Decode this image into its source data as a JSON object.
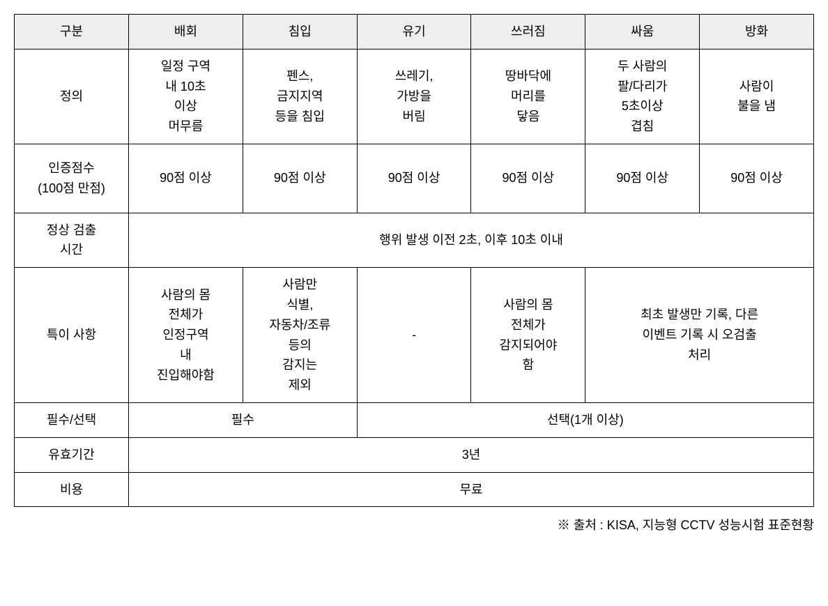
{
  "table": {
    "headers": [
      "구분",
      "배회",
      "침입",
      "유기",
      "쓰러짐",
      "싸움",
      "방화"
    ],
    "rows": {
      "definition": {
        "label": "정의",
        "cells": [
          "일정 구역\n내 10초\n이상\n머무름",
          "펜스,\n금지지역\n등을 침입",
          "쓰레기,\n가방을\n버림",
          "땅바닥에\n머리를\n닿음",
          "두 사람의\n팔/다리가\n5초이상\n겹침",
          "사람이\n불을 냄"
        ]
      },
      "score": {
        "label": "인증점수\n(100점 만점)",
        "cells": [
          "90점 이상",
          "90점 이상",
          "90점 이상",
          "90점 이상",
          "90점 이상",
          "90점 이상"
        ]
      },
      "detection_time": {
        "label": "정상 검출\n시간",
        "merged_value": "행위 발생 이전 2초, 이후 10초 이내"
      },
      "special_notes": {
        "label": "특이 사항",
        "cells": [
          "사람의 몸\n전체가\n인정구역\n내\n진입해야함",
          "사람만\n식별,\n자동차/조류\n등의\n감지는\n제외",
          "-",
          "사람의 몸\n전체가\n감지되어야\n함",
          "최초 발생만 기록, 다른\n이벤트 기록 시 오검출\n처리"
        ]
      },
      "mandatory": {
        "label": "필수/선택",
        "cells": [
          "필수",
          "선택(1개 이상)"
        ]
      },
      "validity": {
        "label": "유효기간",
        "merged_value": "3년"
      },
      "cost": {
        "label": "비용",
        "merged_value": "무료"
      }
    }
  },
  "footnote": "※ 출처 : KISA, 지능형 CCTV 성능시험 표준현황",
  "colors": {
    "header_bg": "#eeeeee",
    "border": "#000000",
    "text": "#000000",
    "background": "#ffffff"
  },
  "typography": {
    "base_fontsize": 18,
    "line_height": 1.6,
    "font_family": "Malgun Gothic"
  }
}
